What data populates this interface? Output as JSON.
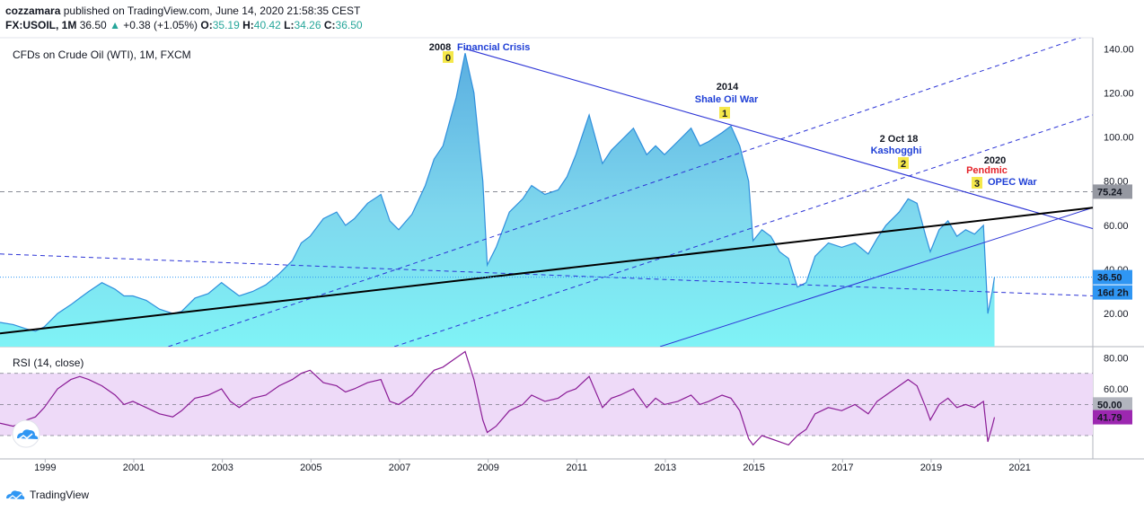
{
  "header": {
    "publisher": "cozzamara",
    "published_text": "published on TradingView.com, June 14, 2020 21:58:35 CEST",
    "symbol": "FX:USOIL, 1M",
    "last": "36.50",
    "change_arrow": "▲",
    "change": "+0.38 (+1.05%)",
    "o_label": "O:",
    "o_value": "35.19",
    "h_label": "H:",
    "h_value": "40.42",
    "l_label": "L:",
    "l_value": "34.26",
    "c_label": "C:",
    "c_value": "36.50"
  },
  "footer": {
    "brand": "TradingView",
    "logo_icon": "tradingview-logo-icon"
  },
  "colors": {
    "area_top": "#5aaee0",
    "area_bottom": "#7ff3f6",
    "area_line": "#2f8fdc",
    "trend_blue": "#2c34d6",
    "trend_black": "#000000",
    "rsi_line": "#8a1b96",
    "rsi_band": "#eedaf8",
    "price_marker": "#2f96f3",
    "rsi_marker": "#9c27b0",
    "ref_marker": "#787b86"
  },
  "chart_data": [
    {
      "type": "area",
      "title": "CFDs on Crude Oil (WTI), 1M, FXCM",
      "ylim": [
        5,
        145
      ],
      "y_ticks": [
        "140.00",
        "120.00",
        "100.00",
        "80.00",
        "60.00",
        "40.00",
        "20.00"
      ],
      "x_ticks": [
        "1999",
        "2001",
        "2003",
        "2005",
        "2007",
        "2009",
        "2011",
        "2013",
        "2015",
        "2017",
        "2019",
        "2021"
      ],
      "x": [
        1998.0,
        1998.3,
        1998.6,
        1998.8,
        1999.0,
        1999.3,
        1999.6,
        1999.8,
        2000.0,
        2000.3,
        2000.6,
        2000.8,
        2001.0,
        2001.3,
        2001.6,
        2001.9,
        2002.1,
        2002.4,
        2002.7,
        2003.0,
        2003.2,
        2003.4,
        2003.7,
        2004.0,
        2004.3,
        2004.6,
        2004.8,
        2005.0,
        2005.3,
        2005.6,
        2005.8,
        2006.0,
        2006.3,
        2006.6,
        2006.8,
        2007.0,
        2007.3,
        2007.6,
        2007.8,
        2008.0,
        2008.3,
        2008.5,
        2008.7,
        2008.9,
        2009.0,
        2009.2,
        2009.5,
        2009.8,
        2010.0,
        2010.3,
        2010.6,
        2010.8,
        2011.0,
        2011.3,
        2011.6,
        2011.8,
        2012.0,
        2012.3,
        2012.6,
        2012.8,
        2013.0,
        2013.3,
        2013.6,
        2013.8,
        2014.0,
        2014.3,
        2014.5,
        2014.7,
        2014.9,
        2015.0,
        2015.2,
        2015.4,
        2015.6,
        2015.8,
        2016.0,
        2016.2,
        2016.4,
        2016.7,
        2017.0,
        2017.3,
        2017.6,
        2017.8,
        2018.0,
        2018.3,
        2018.5,
        2018.7,
        2018.9,
        2019.0,
        2019.2,
        2019.4,
        2019.6,
        2019.8,
        2020.0,
        2020.2,
        2020.3,
        2020.4,
        2020.45
      ],
      "series": [
        {
          "name": "",
          "values": [
            16,
            15,
            13,
            12,
            14,
            20,
            24,
            27,
            30,
            34,
            31,
            28,
            28,
            26,
            22,
            20,
            21,
            27,
            29,
            34,
            31,
            28,
            30,
            33,
            38,
            44,
            52,
            55,
            63,
            66,
            60,
            63,
            70,
            74,
            62,
            58,
            65,
            78,
            90,
            96,
            118,
            138,
            120,
            80,
            42,
            50,
            66,
            72,
            78,
            74,
            76,
            82,
            92,
            110,
            88,
            94,
            98,
            104,
            92,
            96,
            92,
            98,
            104,
            96,
            98,
            102,
            105,
            96,
            80,
            53,
            58,
            55,
            48,
            45,
            32,
            34,
            46,
            52,
            50,
            52,
            47,
            54,
            60,
            66,
            72,
            70,
            55,
            48,
            58,
            62,
            55,
            58,
            56,
            60,
            20,
            30,
            36.5
          ]
        }
      ],
      "annotations": [
        {
          "year": "2008",
          "event": "Financial Crisis",
          "badge": "0"
        },
        {
          "year": "2014",
          "event": "Shale Oil War",
          "badge": "1"
        },
        {
          "year": "2 Oct 18",
          "event": "Kashogghi",
          "badge": "2"
        },
        {
          "year": "2020",
          "event": "Pendmic",
          "event2": "OPEC War",
          "badge": "3"
        }
      ],
      "markers": [
        {
          "label": "75.24",
          "value": 75.24,
          "style": "ref"
        },
        {
          "label": "36.50",
          "value": 36.5,
          "style": "price"
        },
        {
          "label": "16d 2h",
          "value": 29.6,
          "style": "price"
        }
      ]
    },
    {
      "type": "line",
      "title": "RSI (14, close)",
      "ylim": [
        15,
        86
      ],
      "y_ticks": [
        "80.00",
        "60.00"
      ],
      "bands": [
        30,
        50,
        70
      ],
      "band_labels": [
        "50.00"
      ],
      "x": [
        1998.0,
        1998.3,
        1998.6,
        1998.8,
        1999.0,
        1999.3,
        1999.6,
        1999.8,
        2000.0,
        2000.3,
        2000.6,
        2000.8,
        2001.0,
        2001.3,
        2001.6,
        2001.9,
        2002.1,
        2002.4,
        2002.7,
        2003.0,
        2003.2,
        2003.4,
        2003.7,
        2004.0,
        2004.3,
        2004.6,
        2004.8,
        2005.0,
        2005.3,
        2005.6,
        2005.8,
        2006.0,
        2006.3,
        2006.6,
        2006.8,
        2007.0,
        2007.3,
        2007.6,
        2007.8,
        2008.0,
        2008.3,
        2008.5,
        2008.7,
        2008.9,
        2009.0,
        2009.2,
        2009.5,
        2009.8,
        2010.0,
        2010.3,
        2010.6,
        2010.8,
        2011.0,
        2011.3,
        2011.6,
        2011.8,
        2012.0,
        2012.3,
        2012.6,
        2012.8,
        2013.0,
        2013.3,
        2013.6,
        2013.8,
        2014.0,
        2014.3,
        2014.5,
        2014.7,
        2014.9,
        2015.0,
        2015.2,
        2015.4,
        2015.6,
        2015.8,
        2016.0,
        2016.2,
        2016.4,
        2016.7,
        2017.0,
        2017.3,
        2017.6,
        2017.8,
        2018.0,
        2018.3,
        2018.5,
        2018.7,
        2018.9,
        2019.0,
        2019.2,
        2019.4,
        2019.6,
        2019.8,
        2020.0,
        2020.2,
        2020.3,
        2020.4,
        2020.45
      ],
      "series": [
        {
          "name": "",
          "values": [
            38,
            36,
            40,
            42,
            48,
            60,
            66,
            68,
            66,
            62,
            56,
            50,
            52,
            48,
            44,
            42,
            46,
            54,
            56,
            60,
            52,
            48,
            54,
            56,
            62,
            66,
            70,
            72,
            64,
            62,
            58,
            60,
            64,
            66,
            52,
            50,
            56,
            66,
            72,
            74,
            80,
            84,
            66,
            40,
            32,
            36,
            46,
            50,
            56,
            52,
            54,
            58,
            60,
            68,
            48,
            54,
            56,
            60,
            48,
            54,
            50,
            52,
            56,
            50,
            52,
            56,
            54,
            46,
            28,
            24,
            30,
            28,
            26,
            24,
            30,
            34,
            44,
            48,
            46,
            50,
            44,
            52,
            56,
            62,
            66,
            62,
            48,
            40,
            50,
            54,
            48,
            50,
            48,
            52,
            26,
            36,
            41.79
          ]
        }
      ],
      "markers": [
        {
          "label": "41.79",
          "value": 41.79,
          "style": "rsi"
        }
      ]
    }
  ]
}
